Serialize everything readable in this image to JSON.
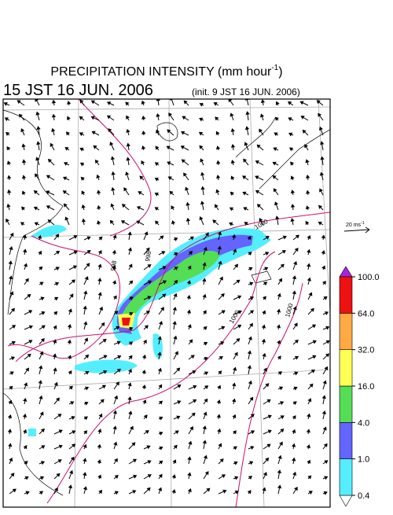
{
  "title": {
    "text": "PRECIPITATION INTENSITY (mm hour",
    "superscript": "-1",
    "close": ")"
  },
  "valid_time": "15 JST 16 JUN. 2006",
  "init_time": "(init. 9 JST 16 JUN. 2006)",
  "wind_scale": {
    "text": "20 ms",
    "superscript": "-1"
  },
  "isobar_labels": [
    "998",
    "998",
    "1000",
    "1000",
    "1000"
  ],
  "colorbar": {
    "ticks": [
      {
        "value": 0.4,
        "label": "0.4"
      },
      {
        "value": 1,
        "label": "1.0"
      },
      {
        "value": 4,
        "label": "4.0"
      },
      {
        "value": 16,
        "label": "16.0"
      },
      {
        "value": 32,
        "label": "32.0"
      },
      {
        "value": 64,
        "label": "64.0"
      },
      {
        "value": 100,
        "label": "100.0"
      }
    ],
    "colors": [
      "#55eeff",
      "#6464ff",
      "#55dd55",
      "#ffff55",
      "#ffaa44",
      "#ee1111"
    ]
  }
}
